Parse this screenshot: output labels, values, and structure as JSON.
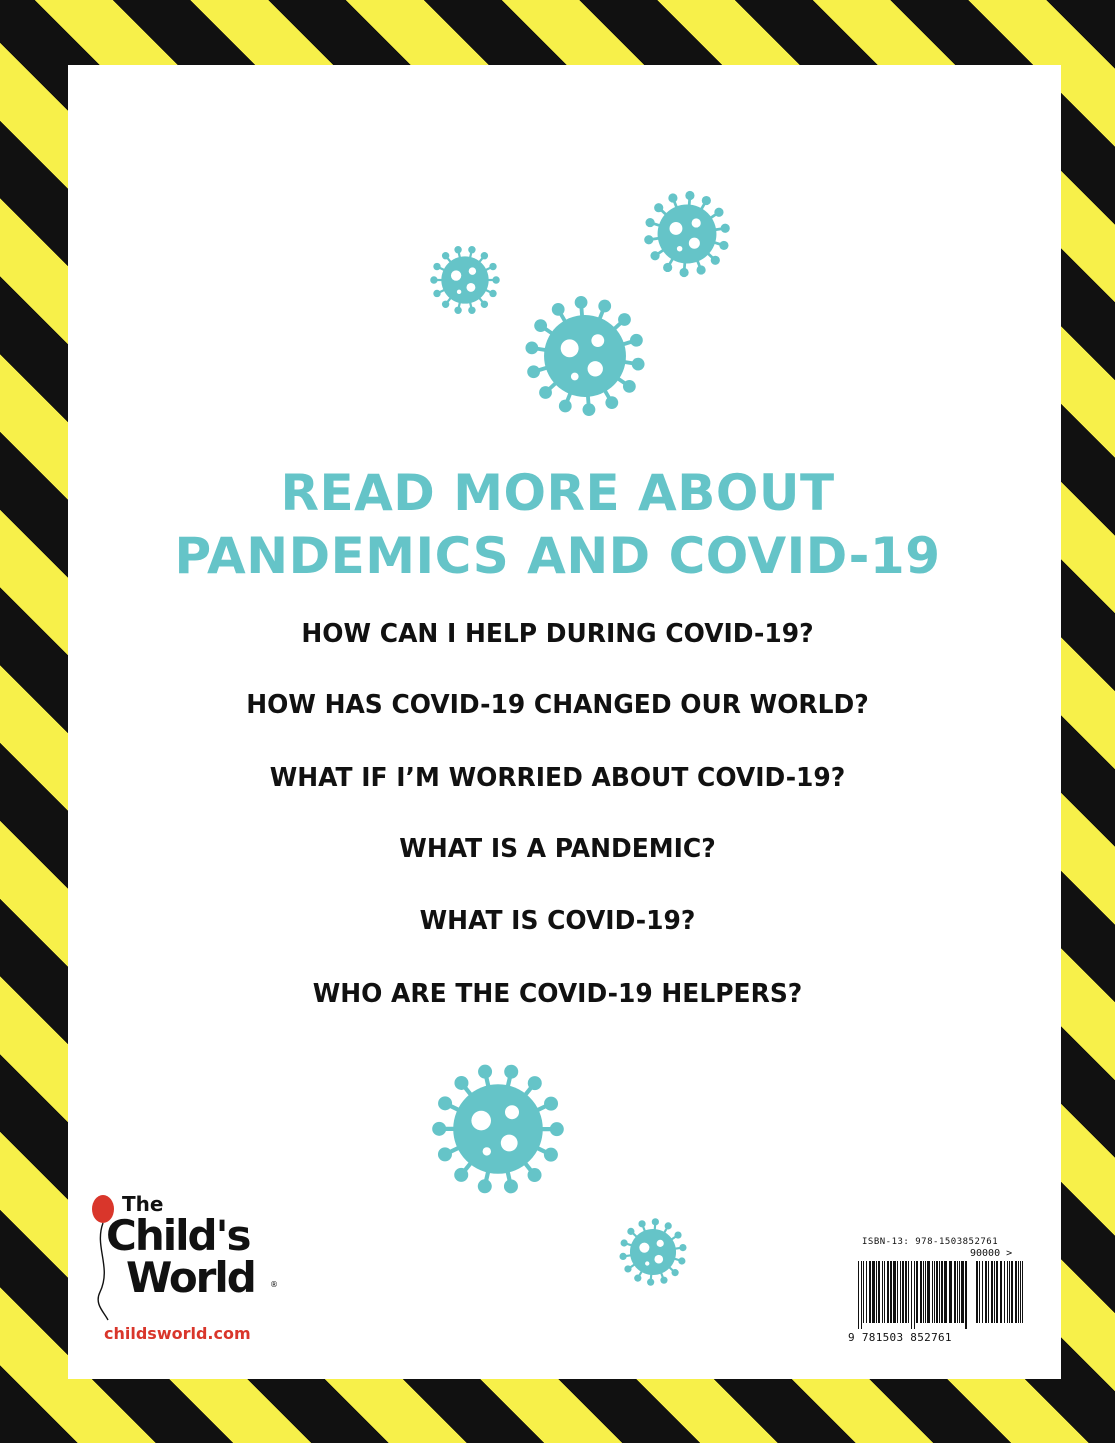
{
  "heading": {
    "line1": "READ MORE ABOUT",
    "line2": "PANDEMICS AND COVID-19"
  },
  "titles": [
    "HOW CAN I HELP DURING COVID-19?",
    "HOW HAS COVID-19 CHANGED OUR WORLD?",
    "WHAT IF I’M WORRIED ABOUT COVID-19?",
    "WHAT IS A PANDEMIC?",
    "WHAT IS COVID-19?",
    "WHO ARE THE COVID-19 HELPERS?"
  ],
  "publisher": {
    "the": "The",
    "word1": "Child's",
    "word2": "World",
    "registered": "®",
    "url": "childsworld.com"
  },
  "barcode": {
    "isbn_label": "ISBN-13: 978-1503852761",
    "addon": "90000 >",
    "digits": "9 781503 852761"
  },
  "colors": {
    "accent": "#65c4c8",
    "stripe_yellow": "#f7f04a",
    "stripe_black": "#111111",
    "logo_red": "#d9362b"
  },
  "icons": [
    "virus-icon",
    "balloon-icon",
    "barcode-icon"
  ]
}
